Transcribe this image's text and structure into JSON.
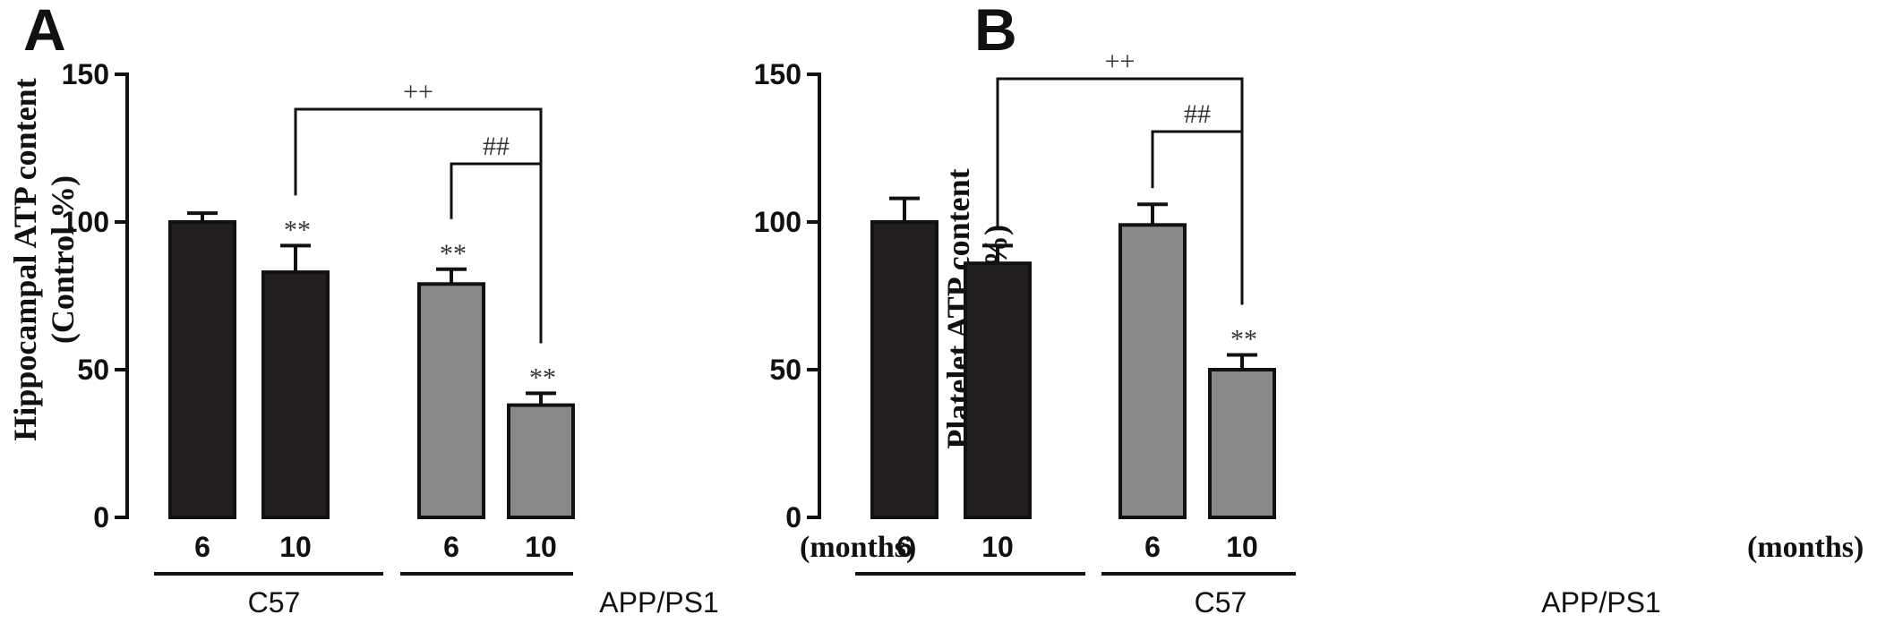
{
  "chart_data": [
    {
      "type": "bar",
      "panel": "A",
      "ylabel_line1": "Hippocampal ATP content",
      "ylabel_line2": "(Control %)",
      "ylim": [
        0,
        150
      ],
      "yticks": [
        "0",
        "50",
        "100",
        "150"
      ],
      "categories": [
        "6",
        "10",
        "6",
        "10"
      ],
      "unit_label": "(months)",
      "groups": [
        "C57",
        "APP/PS1"
      ],
      "values": [
        100,
        83,
        79,
        38
      ],
      "errors": [
        3,
        9,
        5,
        4
      ],
      "colors": [
        "#231f20",
        "#231f20",
        "#898989",
        "#898989"
      ],
      "bar_markers": [
        "",
        "**",
        "**",
        "**"
      ],
      "brackets": [
        {
          "from": 2,
          "to": 3,
          "label": "##"
        },
        {
          "from": 1,
          "to": 3,
          "label": "++"
        }
      ]
    },
    {
      "type": "bar",
      "panel": "B",
      "ylabel_line1": "Platelet ATP content",
      "ylabel_line2": "(Control %)",
      "ylim": [
        0,
        150
      ],
      "yticks": [
        "0",
        "50",
        "100",
        "150"
      ],
      "categories": [
        "6",
        "10",
        "6",
        "10"
      ],
      "unit_label": "(months)",
      "groups": [
        "C57",
        "APP/PS1"
      ],
      "values": [
        100,
        86,
        99,
        50
      ],
      "errors": [
        8,
        6,
        7,
        5
      ],
      "colors": [
        "#231f20",
        "#231f20",
        "#898989",
        "#898989"
      ],
      "bar_markers": [
        "",
        "",
        "",
        "**"
      ],
      "brackets": [
        {
          "from": 2,
          "to": 3,
          "label": "##"
        },
        {
          "from": 1,
          "to": 3,
          "label": "++"
        }
      ]
    }
  ]
}
